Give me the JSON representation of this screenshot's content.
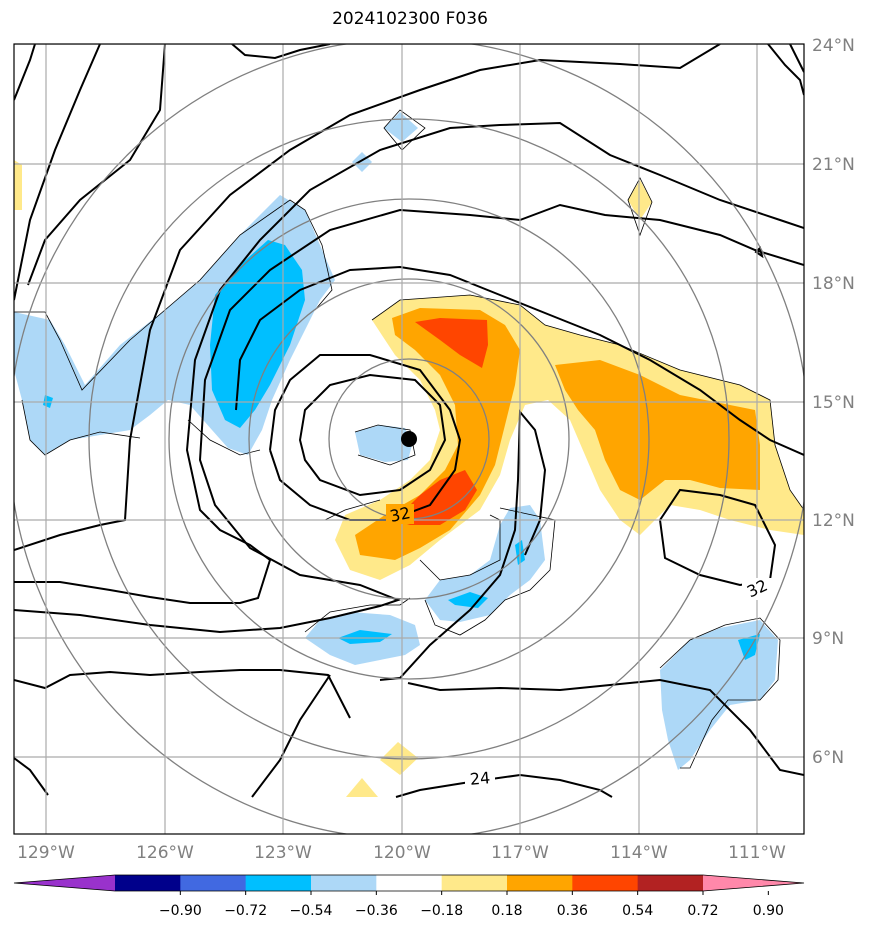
{
  "title": "2024102300 F036",
  "map": {
    "lon_labels": [
      "129°W",
      "126°W",
      "123°W",
      "120°W",
      "117°W",
      "114°W",
      "111°W"
    ],
    "lat_labels": [
      "24°N",
      "21°N",
      "18°N",
      "15°N",
      "12°N",
      "9°N",
      "6°N"
    ],
    "contour_labels": [
      "32",
      "32",
      "24"
    ],
    "center_marker": "storm-center-dot"
  },
  "colorbar": {
    "ticks": [
      "−0.90",
      "−0.72",
      "−0.54",
      "−0.36",
      "−0.18",
      "0.18",
      "0.36",
      "0.54",
      "0.72",
      "0.90"
    ],
    "colors": [
      "#9932cc",
      "#00008b",
      "#4169e1",
      "#00bfff",
      "#add8f7",
      "#ffffff",
      "#ffe98a",
      "#ffa500",
      "#ff4500",
      "#b22222",
      "#ff88aa"
    ]
  }
}
